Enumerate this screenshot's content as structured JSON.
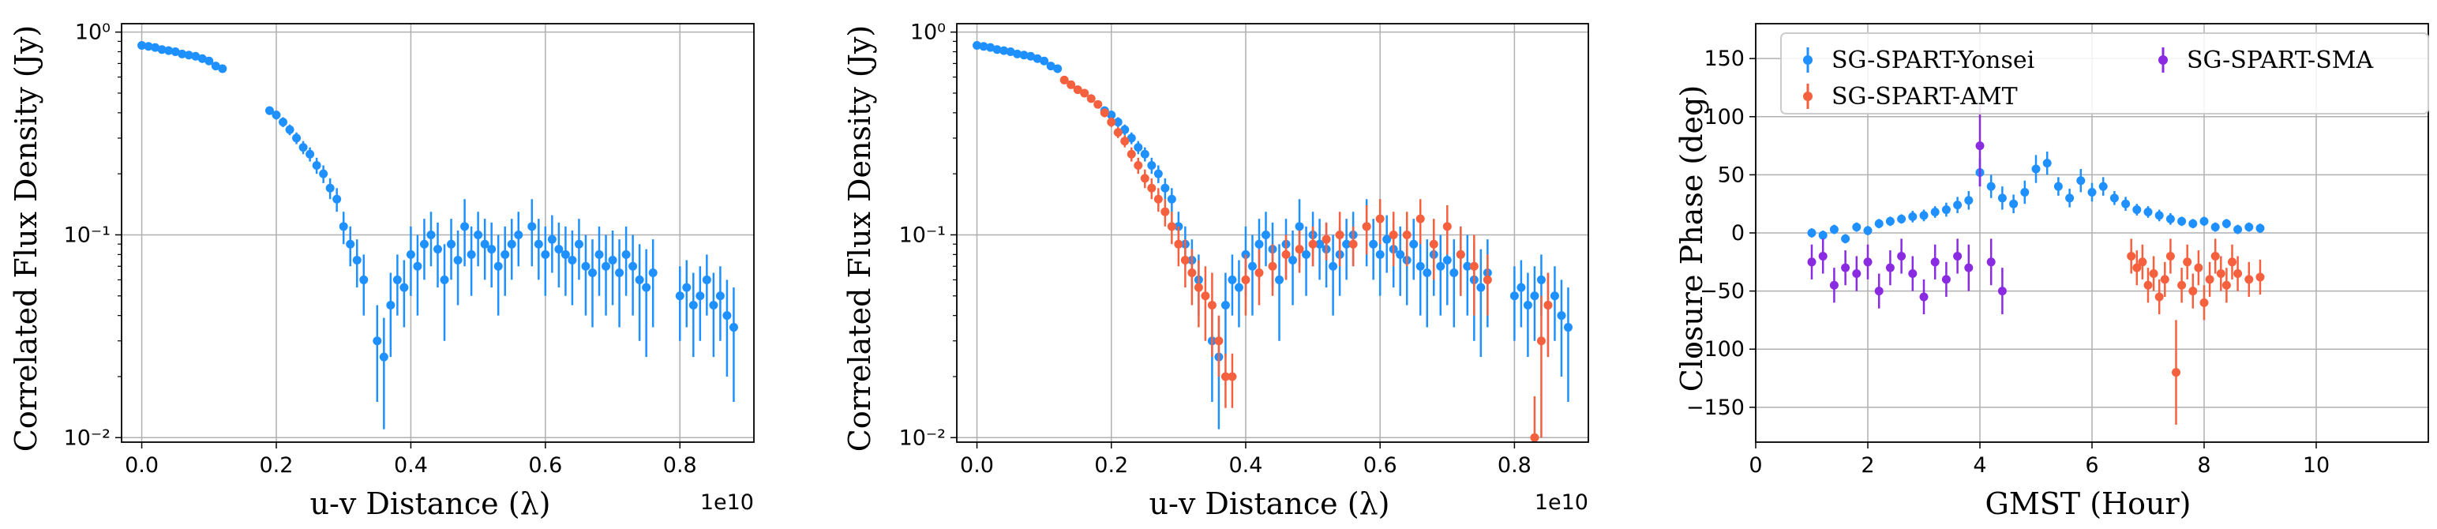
{
  "colors": {
    "blue": "#1E90FF",
    "red": "#F5603E",
    "purple": "#8A2BE2",
    "grid": "#b0b0b0"
  },
  "chart_data": [
    {
      "type": "scatter",
      "yscale": "log",
      "xlabel": "u-v Distance (λ)",
      "ylabel": "Correlated Flux Density (Jy)",
      "x_offset_text": "1e10",
      "xlim": [
        -0.03,
        0.91
      ],
      "ylim": [
        0.0095,
        1.1
      ],
      "x_ticks": [
        0.0,
        0.2,
        0.4,
        0.6,
        0.8
      ],
      "x_tick_labels": [
        "0.0",
        "0.2",
        "0.4",
        "0.6",
        "0.8"
      ],
      "y_ticks": [
        1,
        0.1,
        0.01
      ],
      "y_tick_labels": [
        "10⁰",
        "10⁻¹",
        "10⁻²"
      ],
      "grid": true,
      "series": [
        {
          "name": "SG-SPART-Yonsei",
          "color": "blue",
          "x": [
            0.0,
            0.01,
            0.02,
            0.03,
            0.04,
            0.05,
            0.06,
            0.07,
            0.08,
            0.09,
            0.1,
            0.11,
            0.12,
            0.19,
            0.2,
            0.21,
            0.22,
            0.23,
            0.24,
            0.25,
            0.26,
            0.27,
            0.28,
            0.29,
            0.3,
            0.31,
            0.32,
            0.33,
            0.35,
            0.36,
            0.37,
            0.38,
            0.39,
            0.4,
            0.41,
            0.42,
            0.43,
            0.44,
            0.45,
            0.46,
            0.47,
            0.48,
            0.49,
            0.5,
            0.51,
            0.52,
            0.53,
            0.54,
            0.55,
            0.56,
            0.58,
            0.59,
            0.6,
            0.61,
            0.62,
            0.63,
            0.64,
            0.65,
            0.66,
            0.67,
            0.68,
            0.69,
            0.7,
            0.71,
            0.72,
            0.73,
            0.74,
            0.75,
            0.76,
            0.8,
            0.81,
            0.82,
            0.83,
            0.84,
            0.85,
            0.86,
            0.87,
            0.88
          ],
          "y": [
            0.86,
            0.85,
            0.84,
            0.82,
            0.81,
            0.8,
            0.78,
            0.77,
            0.76,
            0.74,
            0.72,
            0.68,
            0.66,
            0.41,
            0.39,
            0.36,
            0.33,
            0.3,
            0.27,
            0.25,
            0.22,
            0.2,
            0.17,
            0.15,
            0.11,
            0.09,
            0.075,
            0.06,
            0.03,
            0.025,
            0.045,
            0.06,
            0.055,
            0.08,
            0.07,
            0.09,
            0.1,
            0.085,
            0.06,
            0.09,
            0.075,
            0.11,
            0.08,
            0.1,
            0.09,
            0.085,
            0.07,
            0.08,
            0.09,
            0.1,
            0.11,
            0.09,
            0.08,
            0.095,
            0.085,
            0.08,
            0.075,
            0.09,
            0.07,
            0.065,
            0.08,
            0.07,
            0.075,
            0.065,
            0.08,
            0.07,
            0.06,
            0.055,
            0.065,
            0.05,
            0.055,
            0.045,
            0.05,
            0.06,
            0.045,
            0.05,
            0.04,
            0.035
          ],
          "err": [
            0.02,
            0.02,
            0.02,
            0.02,
            0.02,
            0.02,
            0.02,
            0.02,
            0.02,
            0.02,
            0.02,
            0.02,
            0.02,
            0.02,
            0.02,
            0.02,
            0.02,
            0.02,
            0.02,
            0.02,
            0.02,
            0.02,
            0.02,
            0.02,
            0.02,
            0.02,
            0.02,
            0.02,
            0.015,
            0.014,
            0.02,
            0.02,
            0.02,
            0.03,
            0.03,
            0.03,
            0.03,
            0.03,
            0.03,
            0.03,
            0.03,
            0.04,
            0.03,
            0.03,
            0.03,
            0.03,
            0.03,
            0.03,
            0.03,
            0.03,
            0.04,
            0.03,
            0.03,
            0.03,
            0.03,
            0.03,
            0.03,
            0.03,
            0.03,
            0.03,
            0.03,
            0.03,
            0.03,
            0.03,
            0.03,
            0.03,
            0.03,
            0.03,
            0.03,
            0.02,
            0.02,
            0.02,
            0.02,
            0.02,
            0.02,
            0.02,
            0.02,
            0.02
          ]
        }
      ]
    },
    {
      "type": "scatter",
      "yscale": "log",
      "xlabel": "u-v Distance (λ)",
      "ylabel": "Correlated Flux Density (Jy)",
      "x_offset_text": "1e10",
      "xlim": [
        -0.03,
        0.91
      ],
      "ylim": [
        0.0095,
        1.1
      ],
      "x_ticks": [
        0.0,
        0.2,
        0.4,
        0.6,
        0.8
      ],
      "x_tick_labels": [
        "0.0",
        "0.2",
        "0.4",
        "0.6",
        "0.8"
      ],
      "y_ticks": [
        1,
        0.1,
        0.01
      ],
      "y_tick_labels": [
        "10⁰",
        "10⁻¹",
        "10⁻²"
      ],
      "grid": true,
      "series": [
        {
          "name": "SG-SPART-Yonsei",
          "color": "blue",
          "x": [
            0.0,
            0.01,
            0.02,
            0.03,
            0.04,
            0.05,
            0.06,
            0.07,
            0.08,
            0.09,
            0.1,
            0.11,
            0.12,
            0.19,
            0.2,
            0.21,
            0.22,
            0.23,
            0.24,
            0.25,
            0.26,
            0.27,
            0.28,
            0.29,
            0.3,
            0.31,
            0.32,
            0.33,
            0.35,
            0.36,
            0.37,
            0.38,
            0.39,
            0.4,
            0.41,
            0.42,
            0.43,
            0.44,
            0.45,
            0.46,
            0.47,
            0.48,
            0.49,
            0.5,
            0.51,
            0.52,
            0.53,
            0.54,
            0.55,
            0.56,
            0.58,
            0.59,
            0.6,
            0.61,
            0.62,
            0.63,
            0.64,
            0.65,
            0.66,
            0.67,
            0.68,
            0.69,
            0.7,
            0.71,
            0.72,
            0.73,
            0.74,
            0.75,
            0.76,
            0.8,
            0.81,
            0.82,
            0.83,
            0.84,
            0.85,
            0.86,
            0.87,
            0.88
          ],
          "y": [
            0.86,
            0.85,
            0.84,
            0.82,
            0.81,
            0.8,
            0.78,
            0.77,
            0.76,
            0.74,
            0.72,
            0.68,
            0.66,
            0.41,
            0.39,
            0.36,
            0.33,
            0.3,
            0.27,
            0.25,
            0.22,
            0.2,
            0.17,
            0.15,
            0.11,
            0.09,
            0.075,
            0.06,
            0.03,
            0.025,
            0.045,
            0.06,
            0.055,
            0.08,
            0.07,
            0.09,
            0.1,
            0.085,
            0.06,
            0.09,
            0.075,
            0.11,
            0.08,
            0.1,
            0.09,
            0.085,
            0.07,
            0.08,
            0.09,
            0.1,
            0.11,
            0.09,
            0.08,
            0.095,
            0.085,
            0.08,
            0.075,
            0.09,
            0.07,
            0.065,
            0.08,
            0.07,
            0.075,
            0.065,
            0.08,
            0.07,
            0.06,
            0.055,
            0.065,
            0.05,
            0.055,
            0.045,
            0.05,
            0.06,
            0.045,
            0.05,
            0.04,
            0.035
          ],
          "err": [
            0.02,
            0.02,
            0.02,
            0.02,
            0.02,
            0.02,
            0.02,
            0.02,
            0.02,
            0.02,
            0.02,
            0.02,
            0.02,
            0.02,
            0.02,
            0.02,
            0.02,
            0.02,
            0.02,
            0.02,
            0.02,
            0.02,
            0.02,
            0.02,
            0.02,
            0.02,
            0.02,
            0.02,
            0.015,
            0.014,
            0.02,
            0.02,
            0.02,
            0.03,
            0.03,
            0.03,
            0.03,
            0.03,
            0.03,
            0.03,
            0.03,
            0.04,
            0.03,
            0.03,
            0.03,
            0.03,
            0.03,
            0.03,
            0.03,
            0.03,
            0.04,
            0.03,
            0.03,
            0.03,
            0.03,
            0.03,
            0.03,
            0.03,
            0.03,
            0.03,
            0.03,
            0.03,
            0.03,
            0.03,
            0.03,
            0.03,
            0.03,
            0.03,
            0.03,
            0.02,
            0.02,
            0.02,
            0.02,
            0.02,
            0.02,
            0.02,
            0.02,
            0.02
          ]
        },
        {
          "name": "SG-SPART-AMT",
          "color": "red",
          "x": [
            0.13,
            0.14,
            0.15,
            0.16,
            0.17,
            0.18,
            0.19,
            0.2,
            0.21,
            0.22,
            0.23,
            0.24,
            0.25,
            0.26,
            0.27,
            0.28,
            0.29,
            0.3,
            0.31,
            0.32,
            0.33,
            0.34,
            0.35,
            0.36,
            0.37,
            0.38,
            0.4,
            0.42,
            0.44,
            0.46,
            0.48,
            0.5,
            0.52,
            0.54,
            0.56,
            0.58,
            0.6,
            0.62,
            0.64,
            0.66,
            0.68,
            0.7,
            0.72,
            0.74,
            0.76,
            0.83,
            0.84,
            0.85
          ],
          "y": [
            0.58,
            0.55,
            0.52,
            0.5,
            0.47,
            0.44,
            0.4,
            0.36,
            0.32,
            0.29,
            0.25,
            0.22,
            0.19,
            0.17,
            0.15,
            0.13,
            0.11,
            0.09,
            0.075,
            0.065,
            0.055,
            0.05,
            0.045,
            0.03,
            0.02,
            0.02,
            0.06,
            0.065,
            0.07,
            0.08,
            0.085,
            0.09,
            0.095,
            0.1,
            0.09,
            0.11,
            0.12,
            0.1,
            0.1,
            0.12,
            0.09,
            0.11,
            0.08,
            0.07,
            0.06,
            0.01,
            0.03,
            0.045
          ],
          "err": [
            0.02,
            0.02,
            0.02,
            0.02,
            0.02,
            0.02,
            0.02,
            0.02,
            0.02,
            0.02,
            0.02,
            0.02,
            0.02,
            0.02,
            0.02,
            0.02,
            0.02,
            0.02,
            0.02,
            0.02,
            0.02,
            0.02,
            0.02,
            0.01,
            0.006,
            0.006,
            0.02,
            0.02,
            0.02,
            0.02,
            0.02,
            0.02,
            0.02,
            0.03,
            0.02,
            0.03,
            0.03,
            0.03,
            0.03,
            0.03,
            0.03,
            0.03,
            0.03,
            0.03,
            0.02,
            0.006,
            0.02,
            0.02
          ]
        }
      ]
    },
    {
      "type": "scatter",
      "yscale": "linear",
      "xlabel": "GMST (Hour)",
      "ylabel": "Closure Phase (deg)",
      "xlim": [
        0,
        12
      ],
      "ylim": [
        -180,
        180
      ],
      "x_ticks": [
        0,
        2,
        4,
        6,
        8,
        10
      ],
      "x_tick_labels": [
        "0",
        "2",
        "4",
        "6",
        "8",
        "10"
      ],
      "y_ticks": [
        150,
        100,
        50,
        0,
        -50,
        -100,
        -150
      ],
      "y_tick_labels": [
        "150",
        "100",
        "50",
        "0",
        "−50",
        "−100",
        "−150"
      ],
      "grid": true,
      "legend": "top",
      "series": [
        {
          "name": "SG-SPART-Yonsei",
          "color": "blue",
          "x": [
            1.0,
            1.2,
            1.4,
            1.6,
            1.8,
            2.0,
            2.2,
            2.4,
            2.6,
            2.8,
            3.0,
            3.2,
            3.4,
            3.6,
            3.8,
            4.0,
            4.2,
            4.4,
            4.6,
            4.8,
            5.0,
            5.2,
            5.4,
            5.6,
            5.8,
            6.0,
            6.2,
            6.4,
            6.6,
            6.8,
            7.0,
            7.2,
            7.4,
            7.6,
            7.8,
            8.0,
            8.2,
            8.4,
            8.6,
            8.8,
            9.0
          ],
          "y": [
            0,
            -2,
            3,
            -5,
            5,
            2,
            8,
            10,
            12,
            14,
            15,
            18,
            20,
            24,
            28,
            52,
            40,
            30,
            25,
            35,
            55,
            60,
            40,
            30,
            45,
            35,
            40,
            30,
            25,
            20,
            18,
            15,
            12,
            10,
            8,
            10,
            5,
            8,
            3,
            5,
            4
          ],
          "err": [
            4,
            4,
            4,
            4,
            4,
            4,
            4,
            4,
            4,
            5,
            5,
            5,
            6,
            7,
            8,
            12,
            10,
            10,
            8,
            10,
            12,
            10,
            8,
            8,
            10,
            8,
            8,
            6,
            6,
            5,
            5,
            5,
            5,
            4,
            4,
            4,
            4,
            4,
            4,
            4,
            4
          ]
        },
        {
          "name": "SG-SPART-AMT",
          "color": "red",
          "x": [
            6.7,
            6.8,
            6.9,
            7.0,
            7.1,
            7.2,
            7.3,
            7.4,
            7.5,
            7.6,
            7.7,
            7.8,
            7.9,
            8.0,
            8.1,
            8.2,
            8.3,
            8.4,
            8.5,
            8.6,
            8.8,
            9.0
          ],
          "y": [
            -20,
            -30,
            -25,
            -45,
            -35,
            -55,
            -40,
            -20,
            -120,
            -45,
            -25,
            -50,
            -30,
            -60,
            -40,
            -20,
            -35,
            -45,
            -25,
            -35,
            -40,
            -38
          ],
          "err": [
            15,
            15,
            15,
            15,
            15,
            15,
            15,
            15,
            45,
            15,
            15,
            15,
            15,
            15,
            15,
            15,
            15,
            15,
            15,
            15,
            15,
            15
          ]
        },
        {
          "name": "SG-SPART-SMA",
          "color": "purple",
          "x": [
            1.0,
            1.2,
            1.4,
            1.6,
            1.8,
            2.0,
            2.2,
            2.4,
            2.6,
            2.8,
            3.0,
            3.2,
            3.4,
            3.6,
            3.8,
            4.0,
            4.2,
            4.4
          ],
          "y": [
            -25,
            -20,
            -45,
            -30,
            -35,
            -25,
            -50,
            -30,
            -20,
            -35,
            -55,
            -25,
            -40,
            -20,
            -30,
            75,
            -25,
            -50
          ],
          "err": [
            15,
            15,
            15,
            15,
            15,
            15,
            15,
            15,
            15,
            15,
            15,
            15,
            15,
            15,
            20,
            35,
            20,
            20
          ]
        }
      ]
    }
  ]
}
